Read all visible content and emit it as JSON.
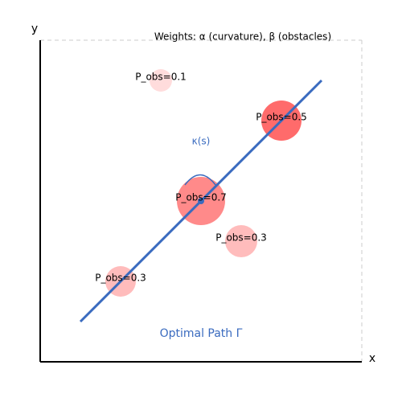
{
  "title": "Weights: α (curvature), β (obstacles)",
  "axes": {
    "x": "x",
    "y": "y"
  },
  "obstacles": [
    {
      "label": "P_obs=0.1"
    },
    {
      "label": "P_obs=0.5"
    },
    {
      "label": "P_obs=0.7"
    },
    {
      "label": "P_obs=0.3"
    },
    {
      "label": "P_obs=0.3"
    }
  ],
  "curvature_label": "κ(s)",
  "path_label": "Optimal Path Γ"
}
